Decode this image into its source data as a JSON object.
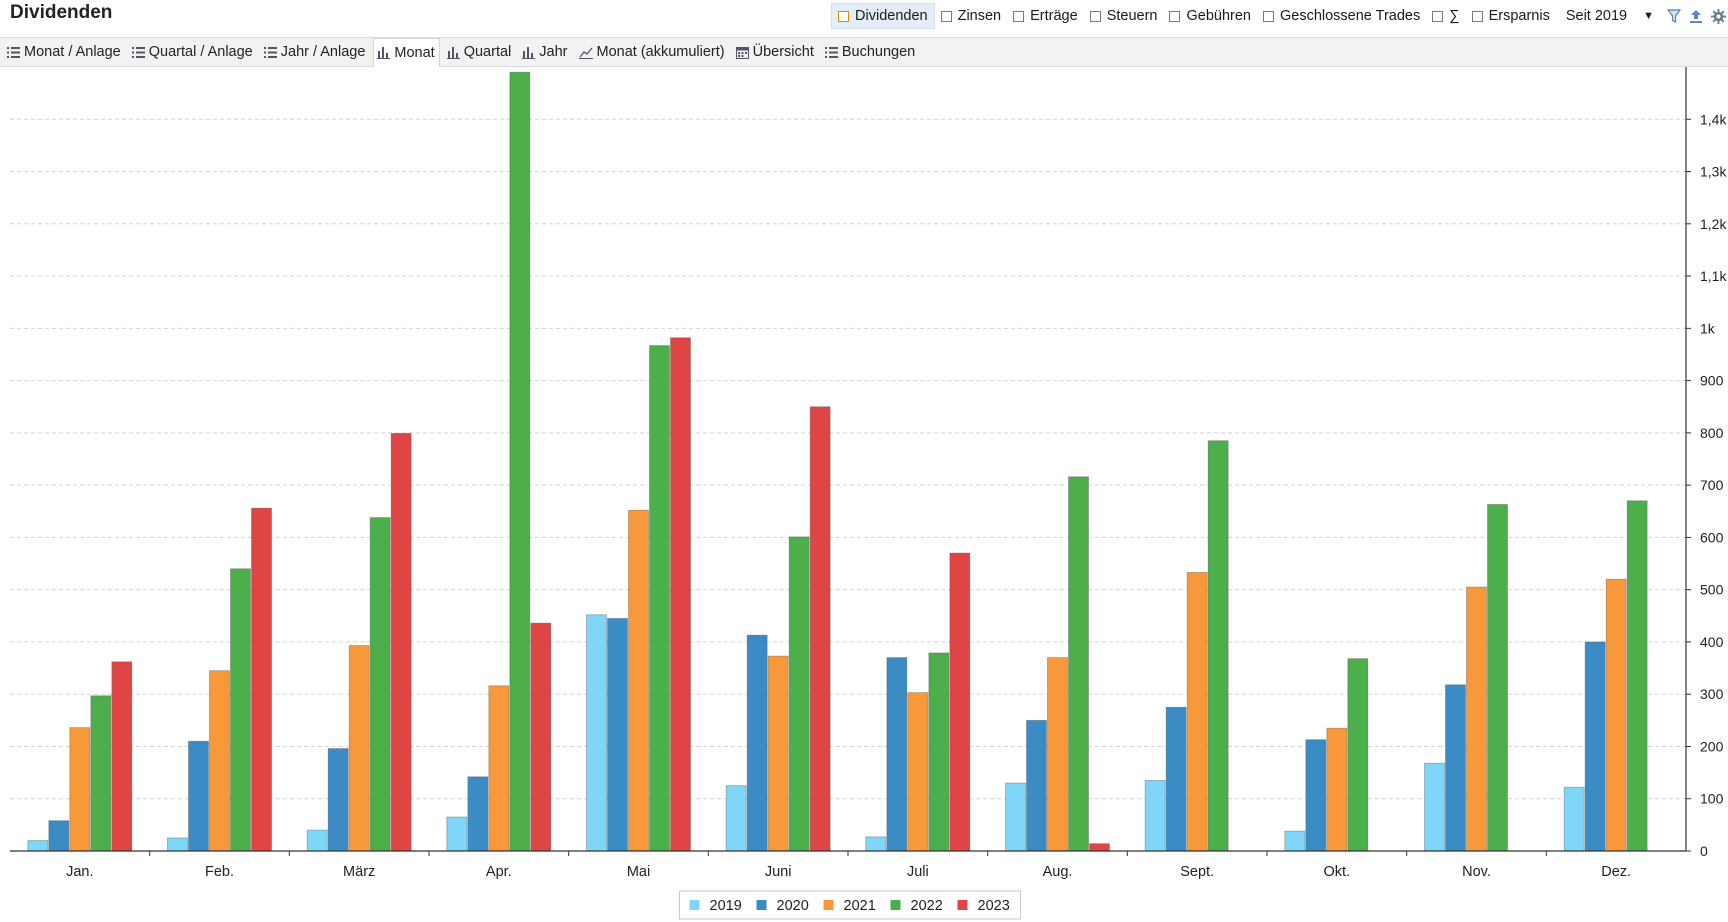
{
  "page": {
    "title": "Dividenden"
  },
  "filters": {
    "items": [
      {
        "label": "Dividenden",
        "active": true
      },
      {
        "label": "Zinsen",
        "active": false
      },
      {
        "label": "Erträge",
        "active": false
      },
      {
        "label": "Steuern",
        "active": false
      },
      {
        "label": "Gebühren",
        "active": false
      },
      {
        "label": "Geschlossene Trades",
        "active": false
      },
      {
        "label": "∑",
        "active": false
      },
      {
        "label": "Ersparnis",
        "active": false
      }
    ],
    "period": "Seit 2019",
    "icons": [
      "filter-icon",
      "export-icon",
      "gear-icon"
    ]
  },
  "tabs": [
    {
      "label": "Monat / Anlage",
      "icon": "list-icon",
      "active": false
    },
    {
      "label": "Quartal / Anlage",
      "icon": "list-icon",
      "active": false
    },
    {
      "label": "Jahr / Anlage",
      "icon": "list-icon",
      "active": false
    },
    {
      "label": "Monat",
      "icon": "bar-chart-icon",
      "active": true
    },
    {
      "label": "Quartal",
      "icon": "bar-chart-icon",
      "active": false
    },
    {
      "label": "Jahr",
      "icon": "bar-chart-icon",
      "active": false
    },
    {
      "label": "Monat (akkumuliert)",
      "icon": "line-chart-icon",
      "active": false
    },
    {
      "label": "Übersicht",
      "icon": "calendar-icon",
      "active": false
    },
    {
      "label": "Buchungen",
      "icon": "list-icon",
      "active": false
    }
  ],
  "chart_data": {
    "type": "bar",
    "categories": [
      "Jan.",
      "Feb.",
      "März",
      "Apr.",
      "Mai",
      "Juni",
      "Juli",
      "Aug.",
      "Sept.",
      "Okt.",
      "Nov.",
      "Dez."
    ],
    "series": [
      {
        "name": "2019",
        "color": "#7fd6f9",
        "values": [
          20,
          25,
          40,
          65,
          452,
          125,
          27,
          130,
          135,
          38,
          168,
          122
        ]
      },
      {
        "name": "2020",
        "color": "#3b8bc4",
        "values": [
          58,
          210,
          196,
          142,
          445,
          413,
          370,
          250,
          275,
          213,
          318,
          400
        ]
      },
      {
        "name": "2021",
        "color": "#f7993b",
        "values": [
          236,
          345,
          393,
          316,
          652,
          373,
          303,
          370,
          533,
          235,
          505,
          520
        ]
      },
      {
        "name": "2022",
        "color": "#4caf4c",
        "values": [
          297,
          540,
          638,
          1490,
          967,
          601,
          379,
          716,
          785,
          368,
          663,
          670
        ]
      },
      {
        "name": "2023",
        "color": "#e04545",
        "values": [
          362,
          656,
          799,
          436,
          982,
          850,
          570,
          14,
          null,
          null,
          null,
          null
        ]
      }
    ],
    "y_ticks": [
      "0",
      "100",
      "200",
      "300",
      "400",
      "500",
      "600",
      "700",
      "800",
      "900",
      "1k",
      "1,1k",
      "1,2k",
      "1,3k",
      "1,4k"
    ],
    "ylim": [
      0,
      1490
    ],
    "y_axis_side": "right",
    "grid": "horizontal dashed",
    "legend_position": "bottom-center"
  }
}
